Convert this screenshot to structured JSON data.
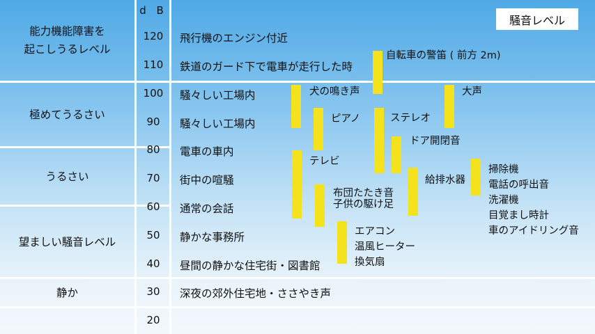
{
  "legend_title": "騒音レベル",
  "db_unit": "d B",
  "categories": [
    "能力機能障害を\n起こしうるレベル",
    "極めてうるさい",
    "うるさい",
    "望ましい騒音レベル",
    "静か"
  ],
  "levels": [
    {
      "db": "120",
      "example": "飛行機のエンジン付近"
    },
    {
      "db": "110",
      "example": "鉄道のガード下で電車が走行した時"
    },
    {
      "db": "100",
      "example": "騒々しい工場内"
    },
    {
      "db": "90",
      "example": "騒々しい工場内"
    },
    {
      "db": "80",
      "example": "電車の車内"
    },
    {
      "db": "70",
      "example": "街中の喧騒"
    },
    {
      "db": "60",
      "example": "通常の会話"
    },
    {
      "db": "50",
      "example": "静かな事務所"
    },
    {
      "db": "40",
      "example": "昼間の静かな住宅街・図書館"
    },
    {
      "db": "30",
      "example": "深夜の郊外住宅地・ささやき声"
    },
    {
      "db": "20",
      "example": ""
    }
  ],
  "sources": [
    {
      "label": "自転車の警笛 ( 前方 2m)",
      "db_min": 100,
      "db_max": 115
    },
    {
      "label": "犬の鳴き声",
      "db_min": 88,
      "db_max": 103
    },
    {
      "label": "大声",
      "db_min": 88,
      "db_max": 103
    },
    {
      "label": "ピアノ",
      "db_min": 80,
      "db_max": 95
    },
    {
      "label": "ステレオ",
      "db_min": 72,
      "db_max": 95
    },
    {
      "label": "ドア開閉音",
      "db_min": 72,
      "db_max": 85
    },
    {
      "label": "テレビ",
      "db_min": 56,
      "db_max": 80
    },
    {
      "label": "布団たたき音",
      "db_min": 63,
      "db_max": 68
    },
    {
      "label": "子供の駆け足",
      "db_min": 53,
      "db_max": 64
    },
    {
      "label": "給排水器",
      "db_min": 57,
      "db_max": 74
    },
    {
      "label": "掃除機\n電話の呼出音\n洗濯機\n目覚まし時計\n車のアイドリング音",
      "db_min": 64,
      "db_max": 77
    },
    {
      "label": "エアコン\n温風ヒーター\n換気扇",
      "db_min": 40,
      "db_max": 55
    }
  ],
  "colors": {
    "bar": "#f4e21c",
    "grid": "#ffffff",
    "background_top": "#4fa9e6",
    "background_bottom": "#f4f8fc"
  }
}
